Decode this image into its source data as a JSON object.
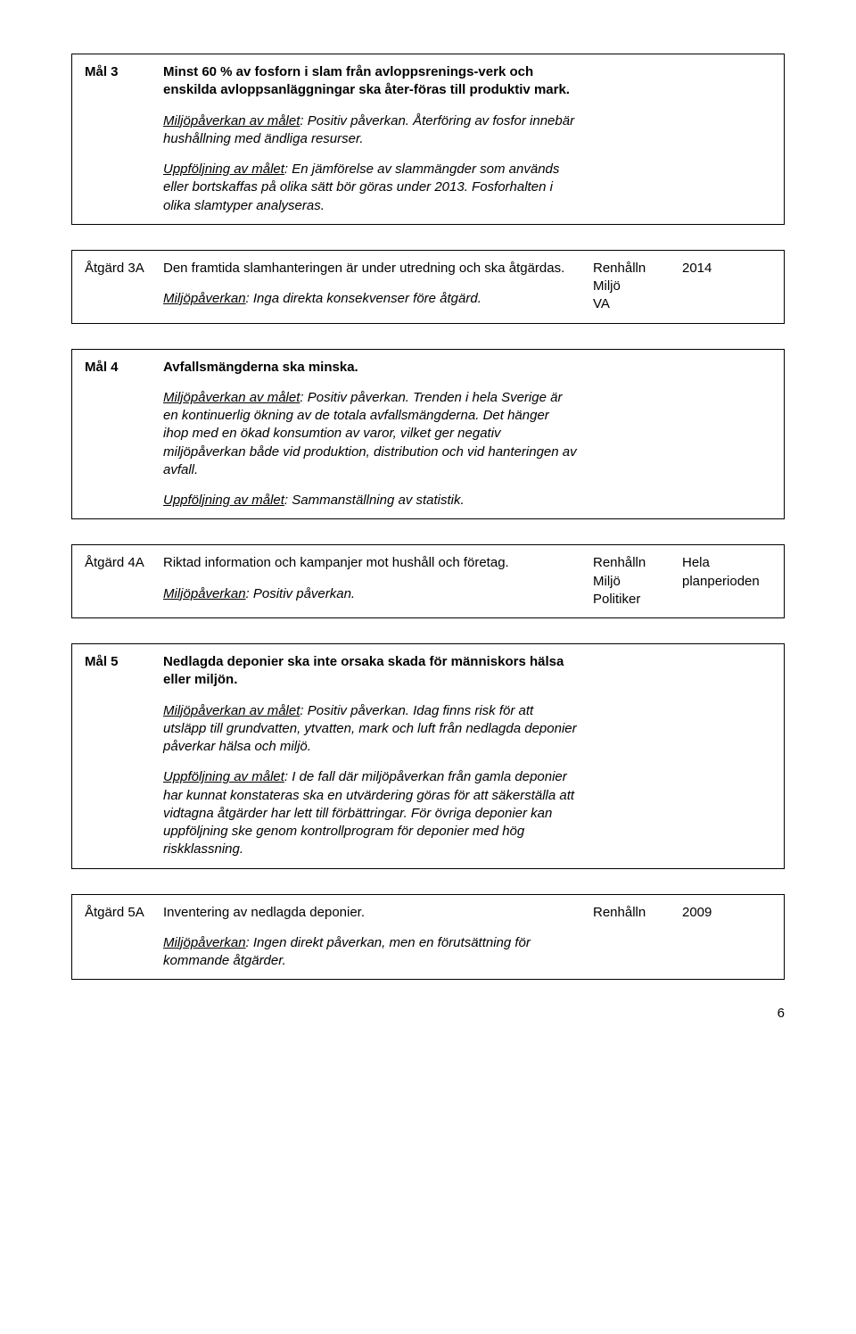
{
  "mal3": {
    "label": "Mål 3",
    "title": "Minst 60 % av fosforn i slam från avloppsrenings-verk och enskilda avloppsanläggningar ska åter-föras till produktiv mark.",
    "p1_run1": "Miljöpåverkan av målet",
    "p1_run2": ": Positiv påverkan. Återföring av fosfor innebär hushållning med ändliga resurser.",
    "p2_run1": "Uppföljning av målet",
    "p2_run2": ": En jämförelse av slammängder som används eller bortskaffas på olika sätt bör göras under 2013. Fosforhalten i olika slamtyper analyseras."
  },
  "atg3A": {
    "label": "Åtgärd 3A",
    "p1": "Den framtida slamhanteringen är under utredning och ska åtgärdas.",
    "p2_run1": "Miljöpåverkan",
    "p2_run2": ": Inga direkta konsekvenser före åtgärd.",
    "a1": "Renhålln",
    "a2": "Miljö",
    "a3": "VA",
    "year": "2014"
  },
  "mal4": {
    "label": "Mål 4",
    "title": "Avfallsmängderna ska minska.",
    "p1_run1": "Miljöpåverkan av målet",
    "p1_run2": ": Positiv påverkan. Trenden i hela Sverige är en kontinuerlig ökning av de totala avfallsmängderna. Det hänger ihop med en ökad konsumtion av varor, vilket ger negativ miljöpåverkan både vid produktion, distribution och vid hanteringen av avfall.",
    "p2_run1": "Uppföljning av målet",
    "p2_run2": ": Sammanställning av statistik."
  },
  "atg4A": {
    "label": "Åtgärd 4A",
    "p1": "Riktad information och kampanjer mot hushåll och företag.",
    "p2_run1": "Miljöpåverkan",
    "p2_run2": ": Positiv påverkan.",
    "a1": "Renhålln",
    "a2": "Miljö",
    "a3": "Politiker",
    "year": "Hela planperioden"
  },
  "mal5": {
    "label": "Mål 5",
    "title": "Nedlagda deponier ska inte orsaka skada för människors hälsa eller miljön.",
    "p1_run1": "Miljöpåverkan av målet",
    "p1_run2": ": Positiv påverkan. Idag finns risk för att utsläpp till grundvatten, ytvatten, mark och luft från nedlagda deponier påverkar hälsa och miljö.",
    "p2_run1": "Uppföljning av målet",
    "p2_run2": ": I de fall där miljöpåverkan från gamla deponier har kunnat konstateras ska en utvärdering göras för att säkerställa att vidtagna åtgärder har lett till förbättringar. För övriga deponier kan uppföljning ske genom kontrollprogram för deponier med hög riskklassning."
  },
  "atg5A": {
    "label": "Åtgärd 5A",
    "p1": "Inventering av nedlagda deponier.",
    "p2_run1": "Miljöpåverkan",
    "p2_run2": ": Ingen direkt påverkan, men en förutsättning för kommande åtgärder.",
    "a1": "Renhålln",
    "year": "2009"
  },
  "pagenum": "6"
}
